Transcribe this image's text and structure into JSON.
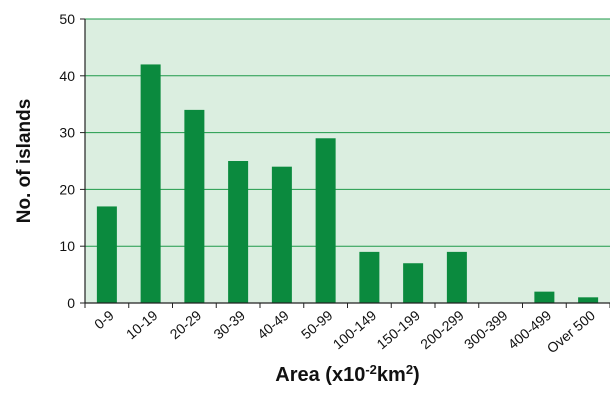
{
  "chart_data": {
    "type": "bar",
    "title": "",
    "xlabel": {
      "prefix": "Area (x10",
      "sup1": "-2",
      "middle": "km",
      "sup2": "2",
      "suffix": ")"
    },
    "ylabel": "No. of islands",
    "ylim": [
      0,
      50
    ],
    "yticks": [
      0,
      10,
      20,
      30,
      40,
      50
    ],
    "categories": [
      "0-9",
      "10-19",
      "20-29",
      "30-39",
      "40-49",
      "50-99",
      "100-149",
      "150-199",
      "200-299",
      "300-399",
      "400-499",
      "Over 500"
    ],
    "values": [
      17,
      42,
      34,
      25,
      24,
      29,
      9,
      7,
      9,
      0,
      2,
      1
    ],
    "grid": true,
    "legend": "none",
    "colors": {
      "bar": "#0b8a3e",
      "plot_background": "#dbeee0",
      "gridline": "#1f9a4a",
      "axis": "#222222"
    }
  }
}
